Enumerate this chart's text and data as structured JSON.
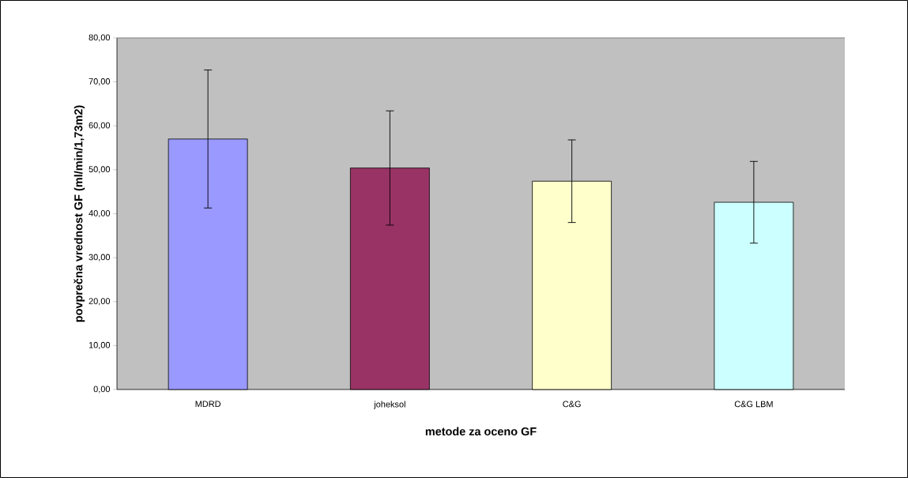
{
  "chart_data": {
    "type": "bar",
    "xlabel": "metode za oceno GF",
    "ylabel": "povprečna vrednost GF (ml/min/1,73m2)",
    "categories": [
      "MDRD",
      "joheksol",
      "C&G",
      "C&G LBM"
    ],
    "values": [
      57.0,
      50.4,
      47.4,
      42.6
    ],
    "errors": [
      15.7,
      13.0,
      9.4,
      9.3
    ],
    "colors": [
      "#9999ff",
      "#993366",
      "#ffffcc",
      "#ccffff"
    ],
    "ylim": [
      0,
      80
    ],
    "yticks": [
      {
        "value": 0,
        "label": "0,00"
      },
      {
        "value": 10,
        "label": "10,00"
      },
      {
        "value": 20,
        "label": "20,00"
      },
      {
        "value": 30,
        "label": "30,00"
      },
      {
        "value": 40,
        "label": "40,00"
      },
      {
        "value": 50,
        "label": "50,00"
      },
      {
        "value": 60,
        "label": "60,00"
      },
      {
        "value": 70,
        "label": "70,00"
      },
      {
        "value": 80,
        "label": "80,00"
      }
    ],
    "grid": false
  }
}
